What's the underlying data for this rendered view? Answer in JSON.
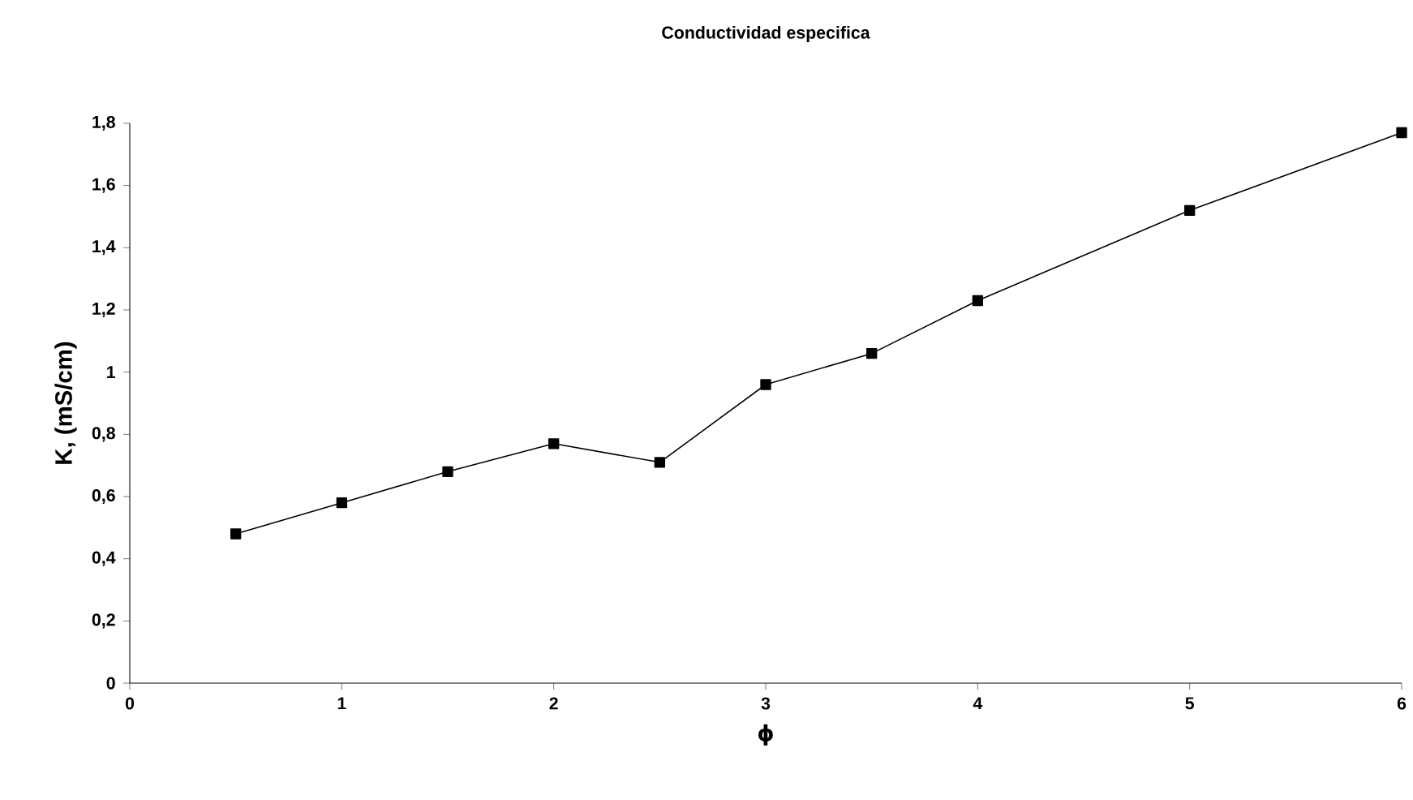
{
  "chart_data": {
    "type": "line",
    "title": "Conductividad especifica",
    "xlabel": "ϕ",
    "ylabel": "K, (mS/cm)",
    "x": [
      0.5,
      1,
      1.5,
      2,
      2.5,
      3,
      3.5,
      4,
      5,
      6
    ],
    "series": [
      {
        "color": "#000000",
        "values": [
          0.48,
          0.58,
          0.68,
          0.77,
          0.71,
          0.96,
          1.06,
          1.23,
          1.52,
          1.77
        ]
      }
    ],
    "marker": "square",
    "line_style": "solid",
    "xlim": [
      0,
      6
    ],
    "ylim": [
      0,
      1.8
    ],
    "xticks": [
      0,
      1,
      2,
      3,
      4,
      5,
      6
    ],
    "yticks": [
      0,
      {
        "value": 0.2,
        "label": "0,2"
      },
      {
        "value": 0.4,
        "label": "0,4"
      },
      {
        "value": 0.6,
        "label": "0,6"
      },
      {
        "value": 0.8,
        "label": "0,8"
      },
      1,
      {
        "value": 1.2,
        "label": "1,2"
      },
      {
        "value": 1.4,
        "label": "1,4"
      },
      {
        "value": 1.6,
        "label": "1,6"
      },
      {
        "value": 1.8,
        "label": "1,8"
      }
    ]
  }
}
